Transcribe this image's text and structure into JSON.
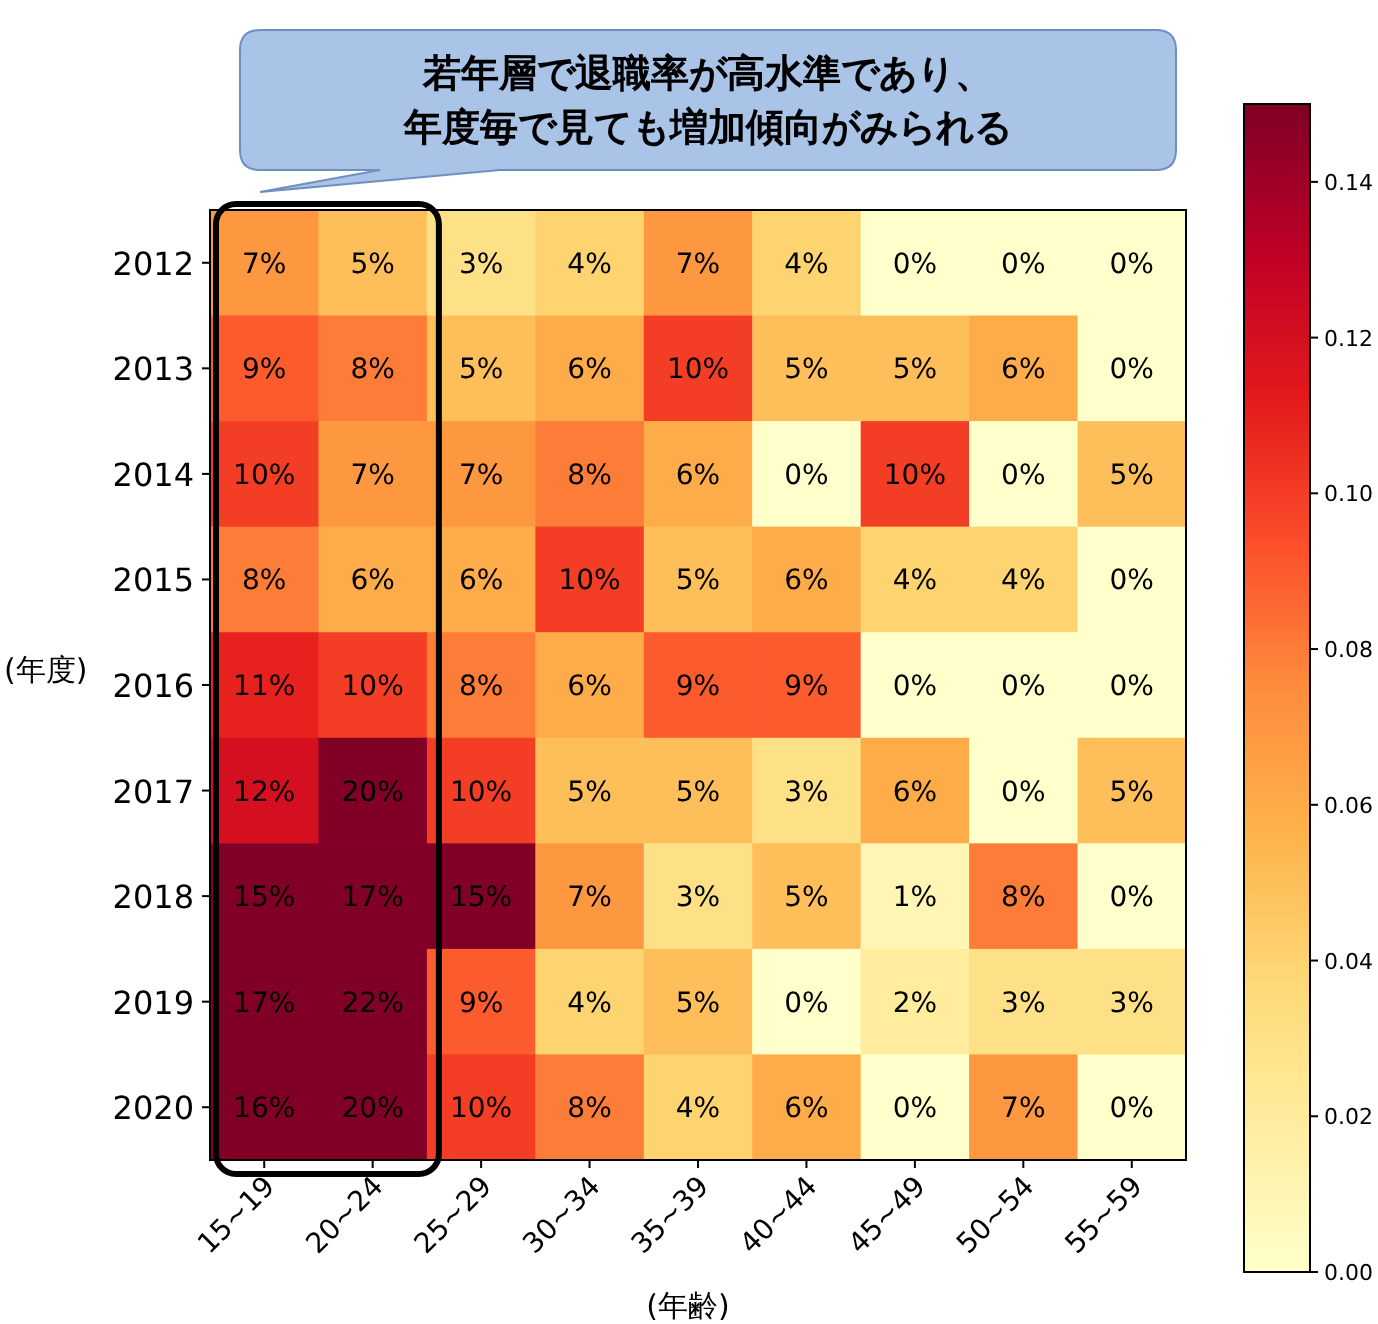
{
  "chart_data": {
    "type": "heatmap",
    "xlabel": "(年齢)",
    "ylabel": "(年度)",
    "annotations": [
      "若年層で退職率が高水準であり、",
      "年度毎で見ても増加傾向がみられる"
    ],
    "categories": [
      "15~19",
      "20~24",
      "25~29",
      "30~34",
      "35~39",
      "40~44",
      "45~49",
      "50~54",
      "55~59"
    ],
    "y_categories": [
      "2012",
      "2013",
      "2014",
      "2015",
      "2016",
      "2017",
      "2018",
      "2019",
      "2020"
    ],
    "cells": [
      [
        0.07,
        0.05,
        0.03,
        0.04,
        0.07,
        0.04,
        0,
        0,
        0
      ],
      [
        0.09,
        0.08,
        0.05,
        0.06,
        0.1,
        0.05,
        0.05,
        0.06,
        0
      ],
      [
        0.1,
        0.07,
        0.07,
        0.08,
        0.06,
        0,
        0.1,
        0,
        0.05
      ],
      [
        0.08,
        0.06,
        0.06,
        0.1,
        0.05,
        0.06,
        0.04,
        0.04,
        0
      ],
      [
        0.11,
        0.1,
        0.08,
        0.06,
        0.09,
        0.09,
        0,
        0,
        0
      ],
      [
        0.12,
        0.2,
        0.1,
        0.05,
        0.05,
        0.03,
        0.06,
        0,
        0.05
      ],
      [
        0.15,
        0.17,
        0.15,
        0.07,
        0.03,
        0.05,
        0.01,
        0.08,
        0
      ],
      [
        0.17,
        0.22,
        0.09,
        0.04,
        0.05,
        0,
        0.02,
        0.03,
        0.03
      ],
      [
        0.16,
        0.2,
        0.1,
        0.08,
        0.04,
        0.06,
        0,
        0.07,
        0
      ]
    ],
    "cell_labels": [
      [
        "7%",
        "5%",
        "3%",
        "4%",
        "7%",
        "4%",
        "0%",
        "0%",
        "0%"
      ],
      [
        "9%",
        "8%",
        "5%",
        "6%",
        "10%",
        "5%",
        "5%",
        "6%",
        "0%"
      ],
      [
        "10%",
        "7%",
        "7%",
        "8%",
        "6%",
        "0%",
        "10%",
        "0%",
        "5%"
      ],
      [
        "8%",
        "6%",
        "6%",
        "10%",
        "5%",
        "6%",
        "4%",
        "4%",
        "0%"
      ],
      [
        "11%",
        "10%",
        "8%",
        "6%",
        "9%",
        "9%",
        "0%",
        "0%",
        "0%"
      ],
      [
        "12%",
        "20%",
        "10%",
        "5%",
        "5%",
        "3%",
        "6%",
        "0%",
        "5%"
      ],
      [
        "15%",
        "17%",
        "15%",
        "7%",
        "3%",
        "5%",
        "1%",
        "8%",
        "0%"
      ],
      [
        "17%",
        "22%",
        "9%",
        "4%",
        "5%",
        "0%",
        "2%",
        "3%",
        "3%"
      ],
      [
        "16%",
        "20%",
        "10%",
        "8%",
        "4%",
        "6%",
        "0%",
        "7%",
        "0%"
      ]
    ],
    "clim": [
      0,
      0.15
    ],
    "cticks": [
      {
        "value": 0,
        "label": "0.00"
      },
      {
        "value": 0.02,
        "label": "0.02"
      },
      {
        "value": 0.04,
        "label": "0.04"
      },
      {
        "value": 0.06,
        "label": "0.06"
      },
      {
        "value": 0.08,
        "label": "0.08"
      },
      {
        "value": 0.1,
        "label": "0.10"
      },
      {
        "value": 0.12,
        "label": "0.12"
      },
      {
        "value": 0.14,
        "label": "0.14"
      }
    ]
  }
}
